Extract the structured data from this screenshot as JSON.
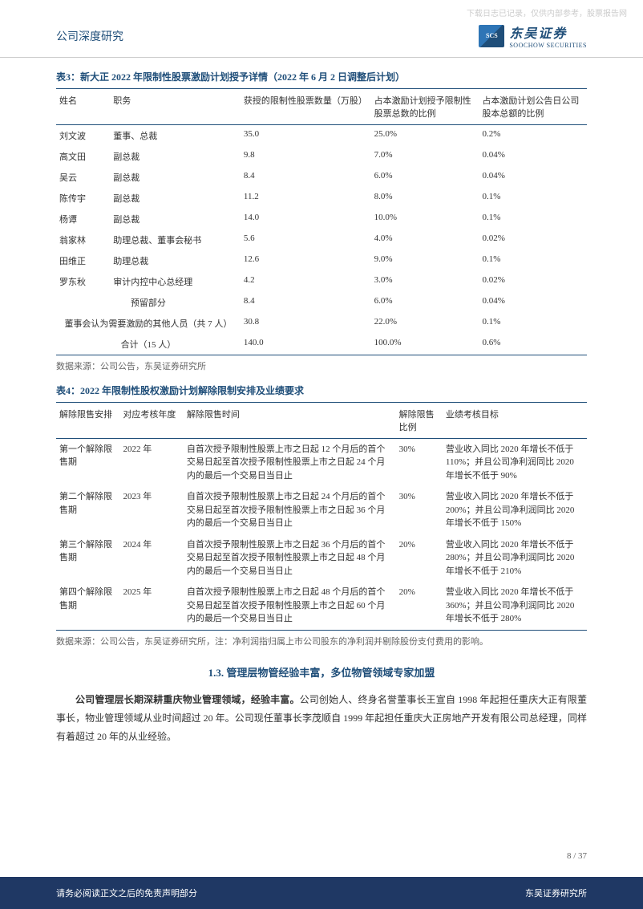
{
  "watermark": "下载日志已记录，仅供内部参考，股票报告网",
  "header": {
    "title": "公司深度研究",
    "logo_icon": "SCS",
    "logo_cn": "东吴证券",
    "logo_en": "SOOCHOW SECURITIES"
  },
  "table3": {
    "title": "表3：新大正 2022 年限制性股票激励计划授予详情（2022 年 6 月 2 日调整后计划）",
    "headers": [
      "姓名",
      "职务",
      "获授的限制性股票数量（万股）",
      "占本激励计划授予限制性股票总数的比例",
      "占本激励计划公告日公司股本总额的比例"
    ],
    "rows": [
      [
        "刘文波",
        "董事、总裁",
        "35.0",
        "25.0%",
        "0.2%"
      ],
      [
        "高文田",
        "副总裁",
        "9.8",
        "7.0%",
        "0.04%"
      ],
      [
        "吴云",
        "副总裁",
        "8.4",
        "6.0%",
        "0.04%"
      ],
      [
        "陈传宇",
        "副总裁",
        "11.2",
        "8.0%",
        "0.1%"
      ],
      [
        "杨谭",
        "副总裁",
        "14.0",
        "10.0%",
        "0.1%"
      ],
      [
        "翁家林",
        "助理总裁、董事会秘书",
        "5.6",
        "4.0%",
        "0.02%"
      ],
      [
        "田维正",
        "助理总裁",
        "12.6",
        "9.0%",
        "0.1%"
      ],
      [
        "罗东秋",
        "审计内控中心总经理",
        "4.2",
        "3.0%",
        "0.02%"
      ]
    ],
    "special_rows": [
      {
        "label": "预留部分",
        "v1": "8.4",
        "v2": "6.0%",
        "v3": "0.04%"
      },
      {
        "label": "董事会认为需要激励的其他人员（共 7 人）",
        "v1": "30.8",
        "v2": "22.0%",
        "v3": "0.1%"
      },
      {
        "label": "合计（15 人）",
        "v1": "140.0",
        "v2": "100.0%",
        "v3": "0.6%"
      }
    ],
    "source": "数据来源：公司公告，东吴证券研究所"
  },
  "table4": {
    "title": "表4：2022 年限制性股权激励计划解除限制安排及业绩要求",
    "headers": [
      "解除限售安排",
      "对应考核年度",
      "解除限售时间",
      "解除限售比例",
      "业绩考核目标"
    ],
    "rows": [
      [
        "第一个解除限售期",
        "2022 年",
        "自首次授予限制性股票上市之日起 12 个月后的首个交易日起至首次授予限制性股票上市之日起 24 个月内的最后一个交易日当日止",
        "30%",
        "营业收入同比 2020 年增长不低于 110%；并且公司净利润同比 2020 年增长不低于 90%"
      ],
      [
        "第二个解除限售期",
        "2023 年",
        "自首次授予限制性股票上市之日起 24 个月后的首个交易日起至首次授予限制性股票上市之日起 36 个月内的最后一个交易日当日止",
        "30%",
        "营业收入同比 2020 年增长不低于 200%；并且公司净利润同比 2020 年增长不低于 150%"
      ],
      [
        "第三个解除限售期",
        "2024 年",
        "自首次授予限制性股票上市之日起 36 个月后的首个交易日起至首次授予限制性股票上市之日起 48 个月内的最后一个交易日当日止",
        "20%",
        "营业收入同比 2020 年增长不低于 280%；并且公司净利润同比 2020 年增长不低于 210%"
      ],
      [
        "第四个解除限售期",
        "2025 年",
        "自首次授予限制性股票上市之日起 48 个月后的首个交易日起至首次授予限制性股票上市之日起 60 个月内的最后一个交易日当日止",
        "20%",
        "营业收入同比 2020 年增长不低于 360%；并且公司净利润同比 2020 年增长不低于 280%"
      ]
    ],
    "source": "数据来源：公司公告，东吴证券研究所，注：净利润指归属上市公司股东的净利润并剔除股份支付费用的影响。"
  },
  "section": {
    "title": "1.3. 管理层物管经验丰富，多位物管领域专家加盟",
    "bold": "公司管理层长期深耕重庆物业管理领域，经验丰富。",
    "text": "公司创始人、终身名誉董事长王宣自 1998 年起担任重庆大正有限董事长，物业管理领域从业时间超过 20 年。公司现任董事长李茂顺自 1999 年起担任重庆大正房地产开发有限公司总经理，同样有着超过 20 年的从业经验。"
  },
  "page": "8 / 37",
  "footer": {
    "left": "请务必阅读正文之后的免责声明部分",
    "right": "东吴证券研究所"
  }
}
